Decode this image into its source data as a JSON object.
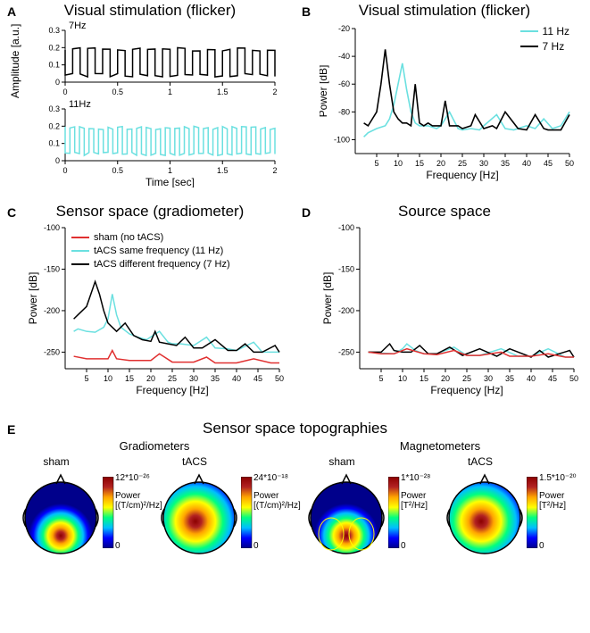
{
  "panelA": {
    "label": "A",
    "title": "Visual stimulation (flicker)",
    "sub1_label": "7Hz",
    "sub2_label": "11Hz",
    "xlabel": "Time [sec]",
    "ylabel": "Amplitude [a.u.]",
    "xlim": [
      0,
      2
    ],
    "xticks": [
      0.0,
      0.5,
      1.0,
      1.5,
      2.0
    ],
    "ylim": [
      0,
      0.3
    ],
    "yticks": [
      0.0,
      0.1,
      0.2,
      0.3
    ],
    "flicker7_x": [
      0,
      0.071,
      0.143,
      0.214,
      0.286,
      0.357,
      0.429,
      0.5,
      0.571,
      0.643,
      0.714,
      0.786,
      0.857,
      0.929,
      1.0,
      1.071,
      1.143,
      1.214,
      1.286,
      1.357,
      1.429,
      1.5,
      1.571,
      1.643,
      1.714,
      1.786,
      1.857,
      1.929,
      2.0
    ],
    "flicker7_y": [
      0.19,
      0.04,
      0.19,
      0.04,
      0.19,
      0.04,
      0.19,
      0.04,
      0.19,
      0.04,
      0.19,
      0.04,
      0.19,
      0.04,
      0.19,
      0.04,
      0.19,
      0.04,
      0.19,
      0.04,
      0.19,
      0.04,
      0.19,
      0.04,
      0.19,
      0.04,
      0.19,
      0.04,
      0.19
    ],
    "flicker11_y": [
      0.19,
      0.04,
      0.19,
      0.04,
      0.19,
      0.04,
      0.19,
      0.04,
      0.19,
      0.04,
      0.19,
      0.04,
      0.19,
      0.04,
      0.19,
      0.04,
      0.19,
      0.04,
      0.19,
      0.04,
      0.19,
      0.04,
      0.19,
      0.04,
      0.19,
      0.04,
      0.19,
      0.04,
      0.19,
      0.04,
      0.19,
      0.04,
      0.19,
      0.04,
      0.19,
      0.04,
      0.19,
      0.04,
      0.19,
      0.04,
      0.19,
      0.04,
      0.19
    ],
    "color7": "#000000",
    "color11": "#6be0e0",
    "label_fontsize": 12
  },
  "panelB": {
    "label": "B",
    "title": "Visual stimulation (flicker)",
    "xlabel": "Frequency [Hz]",
    "ylabel": "Power [dB]",
    "xlim": [
      0,
      50
    ],
    "xticks": [
      5,
      10,
      15,
      20,
      25,
      30,
      35,
      40,
      45,
      50
    ],
    "ylim": [
      -110,
      -20
    ],
    "yticks": [
      -100,
      -80,
      -60,
      -40,
      -20
    ],
    "legend": [
      {
        "color": "#6be0e0",
        "label": "11 Hz"
      },
      {
        "color": "#000000",
        "label": "7 Hz"
      }
    ],
    "series7_x": [
      2,
      3,
      4,
      5,
      6,
      7,
      8,
      9,
      10,
      11,
      12,
      13,
      14,
      15,
      16,
      17,
      18,
      20,
      21,
      22,
      24,
      25,
      27,
      28,
      30,
      32,
      33,
      35,
      38,
      40,
      42,
      44,
      45,
      48,
      50
    ],
    "series7_y": [
      -88,
      -90,
      -85,
      -80,
      -60,
      -35,
      -60,
      -80,
      -85,
      -88,
      -88,
      -90,
      -60,
      -88,
      -90,
      -88,
      -90,
      -90,
      -72,
      -90,
      -90,
      -92,
      -90,
      -82,
      -92,
      -90,
      -92,
      -80,
      -92,
      -93,
      -82,
      -92,
      -93,
      -93,
      -82
    ],
    "series11_x": [
      2,
      3,
      5,
      7,
      8,
      9,
      10,
      11,
      12,
      13,
      14,
      15,
      17,
      19,
      20,
      22,
      24,
      25,
      27,
      29,
      30,
      33,
      35,
      37,
      40,
      42,
      44,
      46,
      48,
      50
    ],
    "series11_y": [
      -98,
      -95,
      -92,
      -90,
      -85,
      -75,
      -60,
      -45,
      -64,
      -80,
      -88,
      -90,
      -90,
      -92,
      -90,
      -80,
      -92,
      -93,
      -92,
      -93,
      -90,
      -82,
      -92,
      -93,
      -90,
      -92,
      -85,
      -92,
      -90,
      -80
    ]
  },
  "panelC": {
    "label": "C",
    "title": "Sensor space (gradiometer)",
    "xlabel": "Frequency [Hz]",
    "ylabel": "Power [dB]",
    "xlim": [
      0,
      50
    ],
    "xticks": [
      5,
      10,
      15,
      20,
      25,
      30,
      35,
      40,
      45,
      50
    ],
    "ylim": [
      -270,
      -100
    ],
    "yticks": [
      -250,
      -200,
      -150,
      -100
    ],
    "legend": [
      {
        "color": "#e03030",
        "label": "sham (no tACS)"
      },
      {
        "color": "#6be0e0",
        "label": "tACS same frequency (11 Hz)"
      },
      {
        "color": "#000000",
        "label": "tACS different frequency (7 Hz)"
      }
    ],
    "sham_x": [
      2,
      5,
      8,
      10,
      11,
      12,
      15,
      18,
      20,
      22,
      25,
      28,
      30,
      33,
      35,
      38,
      40,
      44,
      48,
      50
    ],
    "sham_y": [
      -255,
      -258,
      -258,
      -258,
      -248,
      -258,
      -260,
      -260,
      -260,
      -252,
      -262,
      -262,
      -262,
      -256,
      -263,
      -263,
      -263,
      -258,
      -263,
      -263
    ],
    "t7_x": [
      2,
      3,
      4,
      5,
      6,
      7,
      8,
      9,
      10,
      11,
      12,
      14,
      16,
      18,
      20,
      21,
      22,
      24,
      26,
      28,
      30,
      32,
      35,
      38,
      40,
      42,
      44,
      46,
      49,
      50
    ],
    "t7_y": [
      -210,
      -205,
      -200,
      -195,
      -180,
      -165,
      -180,
      -200,
      -215,
      -220,
      -225,
      -215,
      -230,
      -235,
      -237,
      -225,
      -238,
      -240,
      -242,
      -232,
      -245,
      -245,
      -235,
      -248,
      -248,
      -240,
      -250,
      -250,
      -242,
      -250
    ],
    "t11_x": [
      2,
      3,
      5,
      7,
      9,
      10,
      11,
      12,
      13,
      15,
      17,
      19,
      22,
      24,
      25,
      27,
      30,
      33,
      35,
      38,
      40,
      44,
      46,
      49,
      50
    ],
    "t11_y": [
      -225,
      -222,
      -225,
      -226,
      -220,
      -210,
      -180,
      -205,
      -220,
      -228,
      -232,
      -235,
      -225,
      -238,
      -240,
      -240,
      -242,
      -232,
      -245,
      -246,
      -248,
      -238,
      -250,
      -250,
      -250
    ]
  },
  "panelD": {
    "label": "D",
    "title": "Source space",
    "xlabel": "Frequency [Hz]",
    "ylabel": "Power [dB]",
    "xlim": [
      0,
      50
    ],
    "xticks": [
      5,
      10,
      15,
      20,
      25,
      30,
      35,
      40,
      45,
      50
    ],
    "ylim": [
      -270,
      -100
    ],
    "yticks": [
      -250,
      -200,
      -150,
      -100
    ],
    "sham_x": [
      2,
      5,
      8,
      11,
      15,
      18,
      22,
      25,
      28,
      33,
      35,
      40,
      44,
      48,
      50
    ],
    "sham_y": [
      -250,
      -252,
      -252,
      -246,
      -252,
      -253,
      -248,
      -254,
      -254,
      -250,
      -255,
      -255,
      -252,
      -256,
      -256
    ],
    "t7_x": [
      2,
      5,
      7,
      8,
      10,
      12,
      14,
      16,
      18,
      21,
      24,
      28,
      32,
      35,
      40,
      42,
      44,
      49,
      50
    ],
    "t7_y": [
      -250,
      -250,
      -240,
      -248,
      -250,
      -250,
      -242,
      -252,
      -252,
      -244,
      -254,
      -246,
      -255,
      -246,
      -256,
      -248,
      -256,
      -248,
      -256
    ],
    "t11_x": [
      2,
      5,
      8,
      10,
      11,
      13,
      15,
      18,
      22,
      25,
      28,
      33,
      37,
      40,
      44,
      48,
      50
    ],
    "t11_y": [
      -250,
      -251,
      -252,
      -246,
      -240,
      -248,
      -252,
      -252,
      -244,
      -254,
      -254,
      -246,
      -255,
      -255,
      -246,
      -256,
      -256
    ]
  },
  "panelE": {
    "label": "E",
    "title": "Sensor space topographies",
    "groups": [
      {
        "heading": "Gradiometers",
        "topos": [
          {
            "label": "sham",
            "cb_max": "12*10⁻²⁶",
            "cb_unit": "Power\n[(T/cm)²/Hz]"
          },
          {
            "label": "tACS",
            "cb_max": "24*10⁻¹⁸",
            "cb_unit": "Power\n[(T/cm)²/Hz]"
          }
        ]
      },
      {
        "heading": "Magnetometers",
        "topos": [
          {
            "label": "sham",
            "cb_max": "1*10⁻²⁸",
            "cb_unit": "Power\n[T²/Hz]"
          },
          {
            "label": "tACS",
            "cb_max": "1.5*10⁻²⁰",
            "cb_unit": "Power\n[T²/Hz]"
          }
        ]
      }
    ],
    "cb_min": "0",
    "jet_colors": [
      "#00008b",
      "#0000ff",
      "#00bfff",
      "#00ff7f",
      "#ffff00",
      "#ffa500",
      "#b22222",
      "#8b0000"
    ]
  },
  "colors": {
    "black": "#000000",
    "cyan": "#6be0e0",
    "red": "#e03030",
    "bg": "#ffffff"
  }
}
